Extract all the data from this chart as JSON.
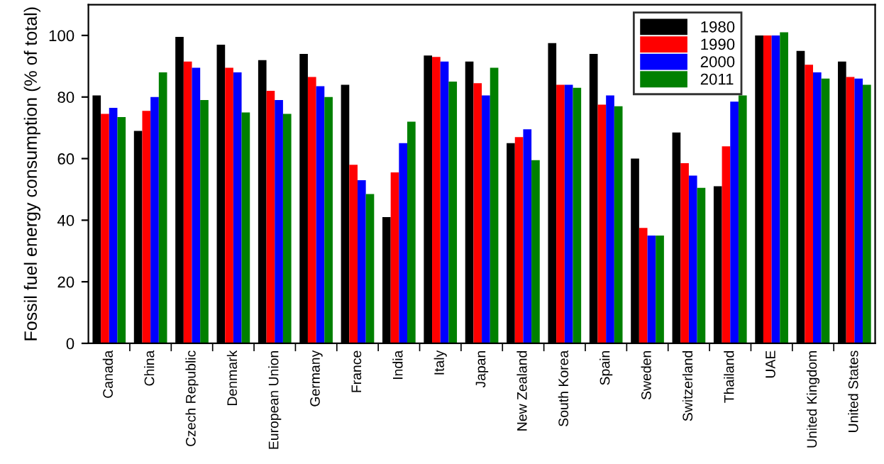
{
  "chart_data": {
    "type": "bar",
    "ylabel": "Fossil fuel energy consumption (% of total)",
    "categories": [
      "Canada",
      "China",
      "Czech Republic",
      "Denmark",
      "European Union",
      "Germany",
      "France",
      "India",
      "Italy",
      "Japan",
      "New Zealand",
      "South Korea",
      "Spain",
      "Sweden",
      "Switzerland",
      "Thailand",
      "UAE",
      "United Kingdom",
      "United States"
    ],
    "series": [
      {
        "name": "1980",
        "color": "#000000",
        "values": [
          80.5,
          69,
          99.5,
          97,
          92,
          94,
          84,
          41,
          93.5,
          91.5,
          65,
          97.5,
          94,
          60,
          68.5,
          51,
          100,
          95,
          91.5
        ]
      },
      {
        "name": "1990",
        "color": "#ff0000",
        "values": [
          74.5,
          75.5,
          91.5,
          89.5,
          82,
          86.5,
          58,
          55.5,
          93,
          84.5,
          67,
          84,
          77.5,
          37.5,
          58.5,
          64,
          100,
          90.5,
          86.5
        ]
      },
      {
        "name": "2000",
        "color": "#0000ff",
        "values": [
          76.5,
          80,
          89.5,
          88,
          79,
          83.5,
          53,
          65,
          91.5,
          80.5,
          69.5,
          84,
          80.5,
          35,
          54.5,
          78.5,
          100,
          88,
          86
        ]
      },
      {
        "name": "2011",
        "color": "#008000",
        "values": [
          73.5,
          88,
          79,
          75,
          74.5,
          80,
          48.5,
          72,
          85,
          89.5,
          59.5,
          83,
          77,
          35,
          50.5,
          80.5,
          101,
          86,
          84
        ]
      }
    ],
    "ylim": [
      0,
      110
    ],
    "yticks": [
      0,
      20,
      40,
      60,
      80,
      100
    ],
    "grid": false,
    "legend": "top right"
  }
}
